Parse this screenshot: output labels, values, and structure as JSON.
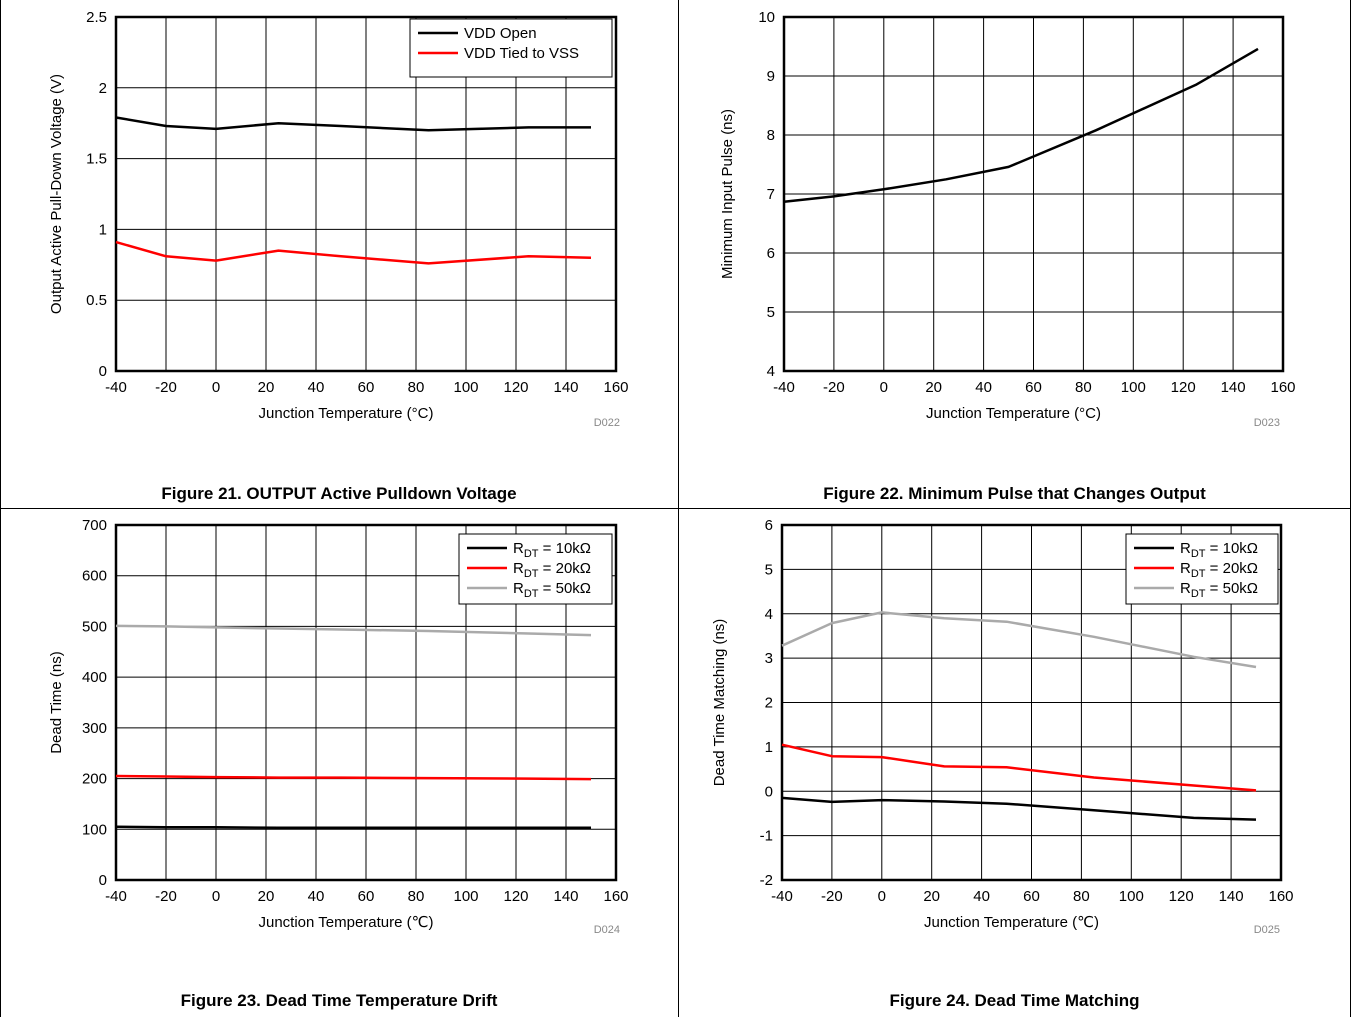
{
  "figures": [
    {
      "caption": "Figure 21. OUTPUT Active Pulldown Voltage",
      "code": "D022",
      "chart_data": {
        "type": "line",
        "xlabel": "Junction Temperature (°C)",
        "ylabel": "Output Active Pull-Down Voltage (V)",
        "xlim": [
          -40,
          160
        ],
        "ylim": [
          0,
          2.5
        ],
        "xticks": [
          "-40",
          "-20",
          "0",
          "20",
          "40",
          "60",
          "80",
          "100",
          "120",
          "140",
          "160"
        ],
        "yticks": [
          "0",
          "0.5",
          "1",
          "1.5",
          "2",
          "2.5"
        ],
        "grid": true,
        "legend": "top-right",
        "series": [
          {
            "name": "VDD Open",
            "color": "#000000",
            "x": [
              -40,
              -20,
              0,
              25,
              50,
              85,
              125,
              150
            ],
            "y": [
              1.79,
              1.73,
              1.71,
              1.75,
              1.73,
              1.7,
              1.72,
              1.72
            ]
          },
          {
            "name": "VDD Tied to VSS",
            "color": "#ff0000",
            "x": [
              -40,
              -20,
              0,
              25,
              50,
              85,
              125,
              150
            ],
            "y": [
              0.91,
              0.81,
              0.78,
              0.85,
              0.81,
              0.76,
              0.81,
              0.8
            ]
          }
        ]
      }
    },
    {
      "caption": "Figure 22. Minimum Pulse that Changes Output",
      "code": "D023",
      "chart_data": {
        "type": "line",
        "xlabel": "Junction Temperature (°C)",
        "ylabel": "Minimum Input Pulse (ns)",
        "xlim": [
          -40,
          160
        ],
        "ylim": [
          4,
          10
        ],
        "xticks": [
          "-40",
          "-20",
          "0",
          "20",
          "40",
          "60",
          "80",
          "100",
          "120",
          "140",
          "160"
        ],
        "yticks": [
          "4",
          "5",
          "6",
          "7",
          "8",
          "9",
          "10"
        ],
        "grid": true,
        "series": [
          {
            "color": "#000000",
            "x": [
              -40,
              -20,
              0,
              25,
              50,
              85,
              125,
              150
            ],
            "y": [
              6.87,
              6.96,
              7.08,
              7.25,
              7.46,
              8.08,
              8.85,
              9.46
            ]
          }
        ]
      }
    },
    {
      "caption": "Figure 23. Dead Time Temperature Drift",
      "code": "D024",
      "chart_data": {
        "type": "line",
        "xlabel": "Junction Temperature (℃)",
        "ylabel": "Dead Time (ns)",
        "xlim": [
          -40,
          160
        ],
        "ylim": [
          0,
          700
        ],
        "xticks": [
          "-40",
          "-20",
          "0",
          "20",
          "40",
          "60",
          "80",
          "100",
          "120",
          "140",
          "160"
        ],
        "yticks": [
          "0",
          "100",
          "200",
          "300",
          "400",
          "500",
          "600",
          "700"
        ],
        "grid": true,
        "legend": "top-right",
        "series": [
          {
            "name": "10kΩ",
            "color": "#000000",
            "x": [
              -40,
              -20,
              0,
              25,
              50,
              85,
              125,
              150
            ],
            "y": [
              105,
              104,
              104,
              103,
              103,
              103,
              103,
              103
            ]
          },
          {
            "name": "20kΩ",
            "color": "#ff0000",
            "x": [
              -40,
              -20,
              0,
              25,
              50,
              85,
              125,
              150
            ],
            "y": [
              205,
              204,
              203,
              202,
              202,
              201,
              200,
              199
            ]
          },
          {
            "name": "50kΩ",
            "color": "#aaaaaa",
            "x": [
              -40,
              -20,
              0,
              25,
              50,
              85,
              125,
              150
            ],
            "y": [
              501,
              500,
              498,
              496,
              494,
              491,
              486,
              483
            ]
          }
        ]
      }
    },
    {
      "caption": "Figure 24. Dead Time Matching",
      "code": "D025",
      "chart_data": {
        "type": "line",
        "xlabel": "Junction Temperature (℃)",
        "ylabel": "Dead Time Matching (ns)",
        "xlim": [
          -40,
          160
        ],
        "ylim": [
          -2,
          6
        ],
        "xticks": [
          "-40",
          "-20",
          "0",
          "20",
          "40",
          "60",
          "80",
          "100",
          "120",
          "140",
          "160"
        ],
        "yticks": [
          "-2",
          "-1",
          "0",
          "1",
          "2",
          "3",
          "4",
          "5",
          "6"
        ],
        "grid": true,
        "legend": "top-right",
        "series": [
          {
            "name": "10kΩ",
            "color": "#000000",
            "x": [
              -40,
              -20,
              0,
              25,
              50,
              85,
              125,
              150
            ],
            "y": [
              -0.15,
              -0.24,
              -0.2,
              -0.23,
              -0.28,
              -0.43,
              -0.6,
              -0.64
            ]
          },
          {
            "name": "20kΩ",
            "color": "#ff0000",
            "x": [
              -40,
              -20,
              0,
              25,
              50,
              85,
              125,
              150
            ],
            "y": [
              1.05,
              0.79,
              0.77,
              0.56,
              0.54,
              0.31,
              0.13,
              0.02
            ]
          },
          {
            "name": "50kΩ",
            "color": "#aaaaaa",
            "x": [
              -40,
              -20,
              0,
              25,
              50,
              85,
              125,
              150
            ],
            "y": [
              3.28,
              3.79,
              4.03,
              3.9,
              3.82,
              3.48,
              3.03,
              2.8
            ]
          }
        ]
      }
    }
  ],
  "legend_prefix": "R",
  "legend_subscript": "DT",
  "legend_eq": " = "
}
